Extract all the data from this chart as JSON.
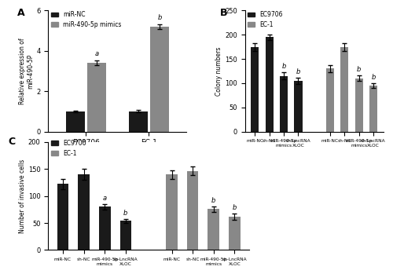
{
  "panel_A": {
    "title": "A",
    "ylabel": "Relative expression of\nmiR-490-5P",
    "ylim": [
      0,
      6
    ],
    "yticks": [
      0,
      2,
      4,
      6
    ],
    "groups": [
      "EC9706",
      "EC-1"
    ],
    "bar_labels": [
      "miR-NC",
      "miR-490-5p mimics"
    ],
    "bar_colors": [
      "#1a1a1a",
      "#888888"
    ],
    "values": [
      [
        1.0,
        3.4
      ],
      [
        1.0,
        5.2
      ]
    ],
    "errors": [
      [
        0.05,
        0.12
      ],
      [
        0.06,
        0.12
      ]
    ],
    "sig_labels": [
      [
        "",
        "a"
      ],
      [
        "",
        "b"
      ]
    ]
  },
  "panel_B": {
    "title": "B",
    "ylabel": "Colony numbers",
    "ylim": [
      0,
      250
    ],
    "yticks": [
      0,
      50,
      100,
      150,
      200,
      250
    ],
    "bar_labels": [
      "EC9706",
      "EC-1"
    ],
    "bar_colors": [
      "#1a1a1a",
      "#888888"
    ],
    "values_EC9706": [
      175,
      195,
      115,
      105
    ],
    "values_EC1": [
      130,
      175,
      110,
      95
    ],
    "errors_EC9706": [
      8,
      6,
      7,
      6
    ],
    "errors_EC1": [
      7,
      8,
      6,
      5
    ],
    "sig_labels_EC9706": [
      "",
      "",
      "b",
      "b"
    ],
    "sig_labels_EC1": [
      "",
      "",
      "b",
      "b"
    ],
    "xtick_labels": [
      "miR-NC",
      "sh-NC",
      "miR-490-5p\nmimics",
      "sh-LncRNA\nXLOC"
    ]
  },
  "panel_C": {
    "title": "C",
    "ylabel": "Number of invasive cells",
    "ylim": [
      0,
      200
    ],
    "yticks": [
      0,
      50,
      100,
      150,
      200
    ],
    "bar_labels": [
      "EC9706",
      "EC-1"
    ],
    "bar_colors": [
      "#1a1a1a",
      "#888888"
    ],
    "values_EC9706": [
      122,
      140,
      80,
      54
    ],
    "values_EC1": [
      140,
      146,
      76,
      62
    ],
    "errors_EC9706": [
      10,
      10,
      5,
      4
    ],
    "errors_EC1": [
      8,
      8,
      5,
      6
    ],
    "sig_labels_EC9706": [
      "",
      "",
      "a",
      "b"
    ],
    "sig_labels_EC1": [
      "",
      "",
      "b",
      "b"
    ],
    "xtick_labels": [
      "miR-NC",
      "sh-NC",
      "miR-490-5p\nmimics",
      "sh-LncRNA\nXLOC"
    ]
  }
}
